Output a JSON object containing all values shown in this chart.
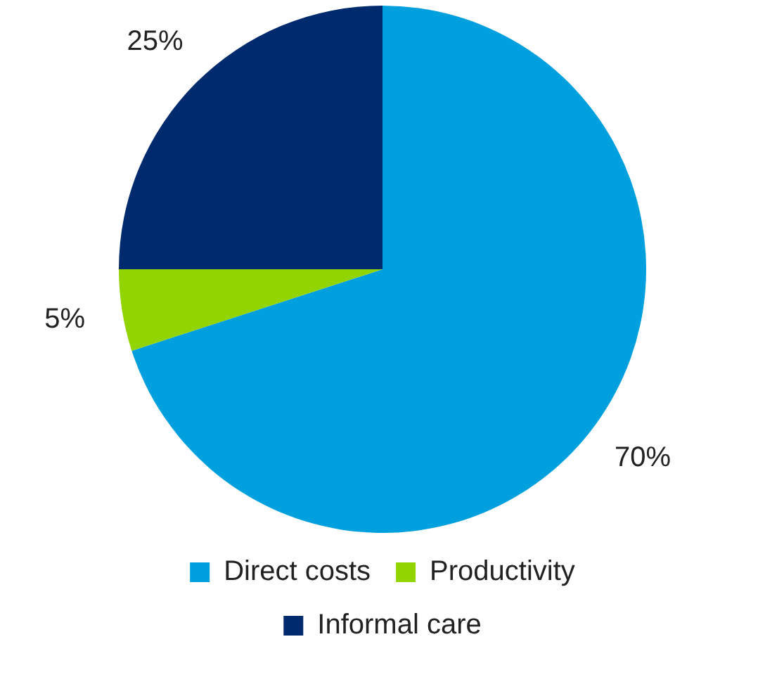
{
  "chart_data": {
    "type": "pie",
    "categories": [
      "Direct costs",
      "Productivity",
      "Informal care"
    ],
    "values": [
      70,
      5,
      25
    ],
    "colors": [
      "#00a0df",
      "#92d400",
      "#002a6e"
    ],
    "value_labels": [
      "70%",
      "5%",
      "25%"
    ],
    "legend": "bottom"
  }
}
